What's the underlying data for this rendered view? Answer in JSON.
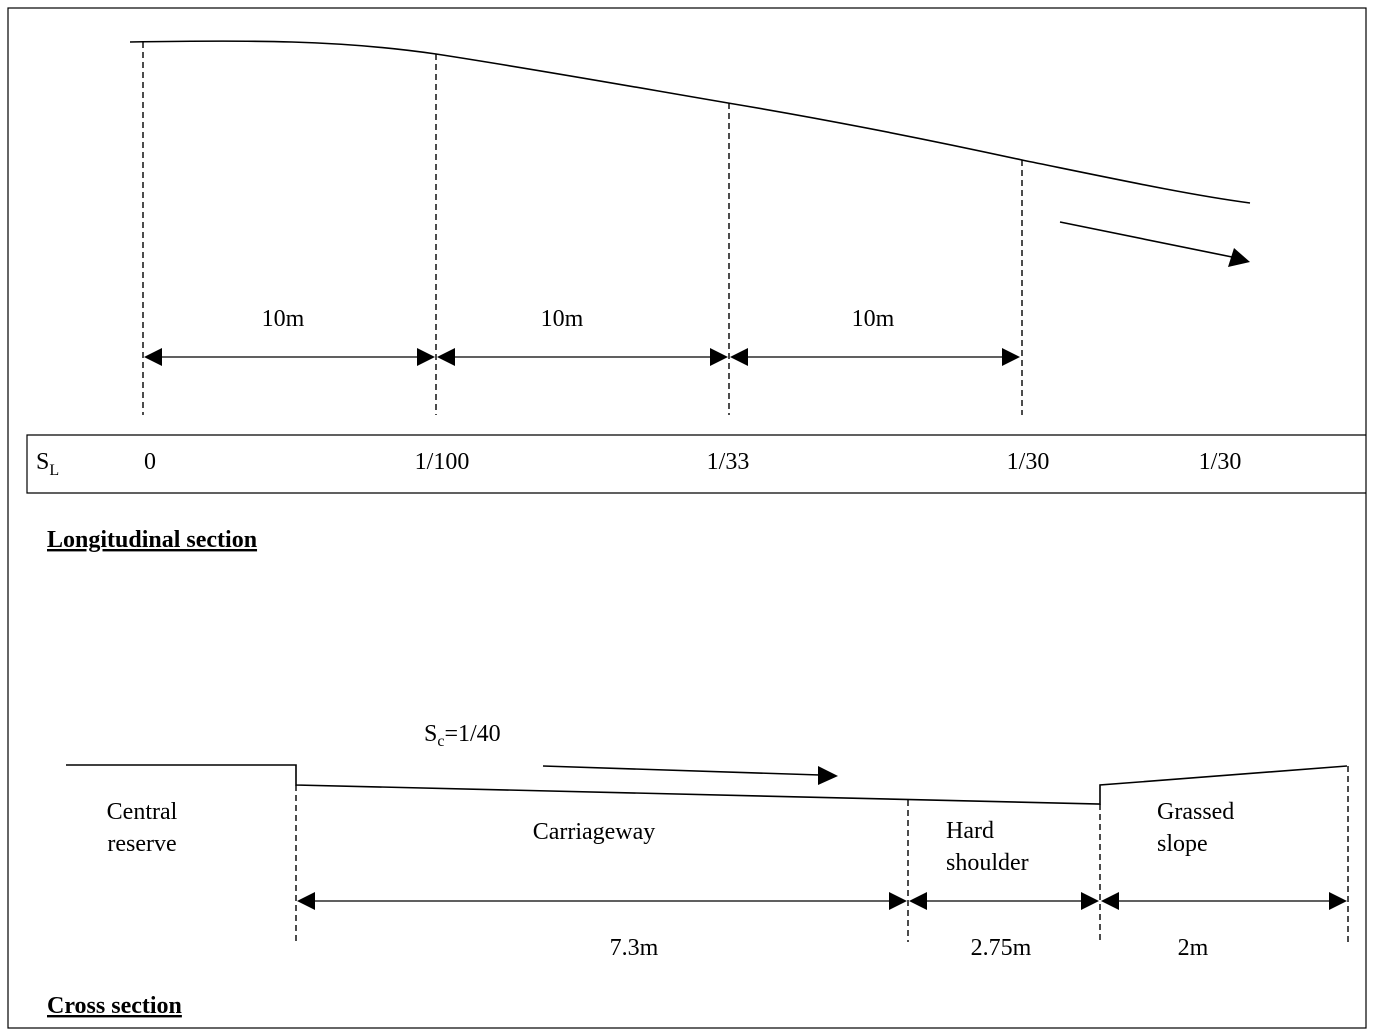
{
  "longitudinal": {
    "title": "Longitudinal section",
    "segment_labels": [
      "10m",
      "10m",
      "10m"
    ],
    "slope_row_label": "S",
    "slope_row_label_sub": "L",
    "slopes": [
      "0",
      "1/100",
      "1/33",
      "1/30",
      "1/30"
    ]
  },
  "cross": {
    "title": "Cross section",
    "slope_label_main": "S",
    "slope_label_sub": "c",
    "slope_label_value": "=1/40",
    "central_reserve_line1": "Central",
    "central_reserve_line2": "reserve",
    "carriageway": "Carriageway",
    "hard_shoulder_line1": "Hard",
    "hard_shoulder_line2": "shoulder",
    "grassed_slope_line1": "Grassed",
    "grassed_slope_line2": "slope",
    "widths": [
      "7.3m",
      "2.75m",
      "2m"
    ]
  }
}
